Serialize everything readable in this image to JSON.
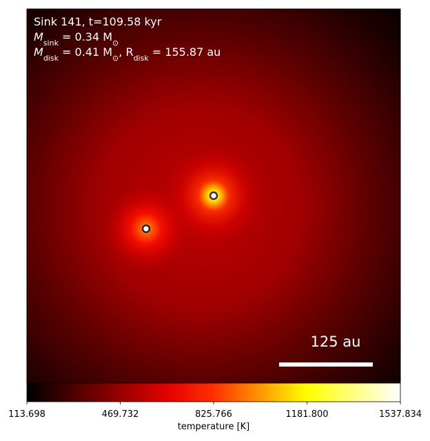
{
  "chart_data": {
    "type": "heatmap",
    "annotations": [
      [
        {
          "text": "Sink 141, t=109.58 kyr"
        }
      ],
      [
        {
          "text": "M"
        },
        {
          "sub": "sink"
        },
        {
          "text": " = 0.34 M"
        },
        {
          "sub": "⊙"
        }
      ],
      [
        {
          "text": "M"
        },
        {
          "sub": "disk"
        },
        {
          "text": " = 0.41 M"
        },
        {
          "sub": "⊙"
        },
        {
          "text": ", R"
        },
        {
          "sub": "disk"
        },
        {
          "text": " = 155.87 au"
        }
      ]
    ],
    "scale_bar": "125 au",
    "colorbar": {
      "label": "temperature [K]",
      "clim": [
        113.698,
        1537.834
      ],
      "ticks": [
        113.698,
        469.732,
        825.766,
        {
          "value": 1181.8,
          "label": "1181.800"
        },
        1537.834
      ]
    }
  }
}
